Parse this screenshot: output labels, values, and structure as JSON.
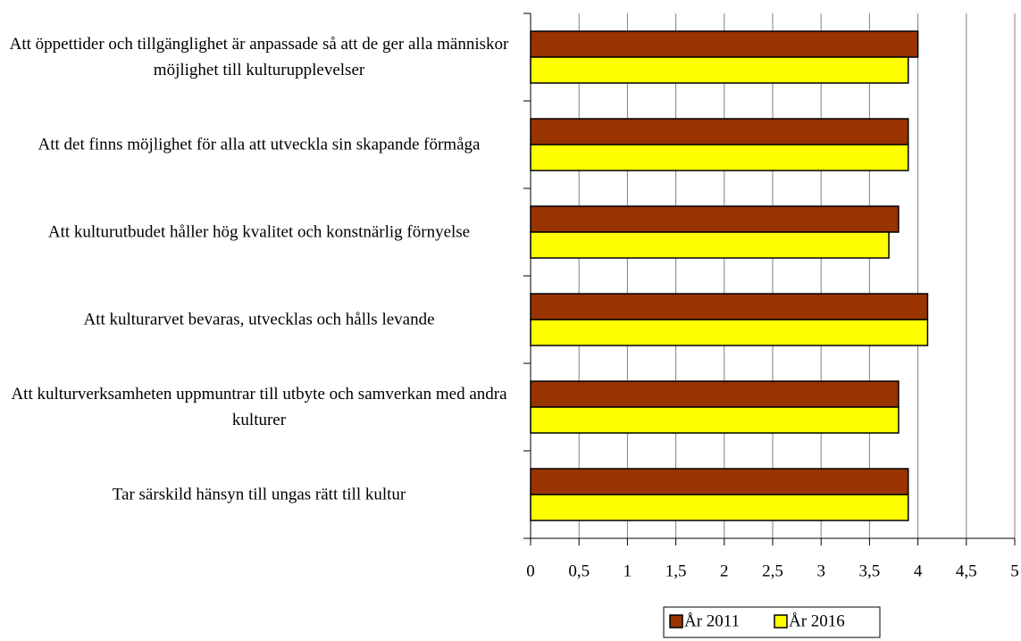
{
  "chart_data": {
    "type": "bar",
    "orientation": "horizontal",
    "categories": [
      "Att öppettider och tillgänglighet är anpassade så att de ger alla människor möjlighet till kulturupplevelser",
      "Att det finns möjlighet för alla att utveckla sin skapande förmåga",
      "Att kulturutbudet håller hög kvalitet och konstnärlig förnyelse",
      "Att kulturarvet bevaras, utvecklas och hålls levande",
      "Att kulturverksamheten uppmuntrar till utbyte och samverkan med andra kulturer",
      "Tar särskild hänsyn till ungas rätt till kultur"
    ],
    "series": [
      {
        "name": "År 2011",
        "color": "#993300",
        "values": [
          4.0,
          3.9,
          3.8,
          4.1,
          3.8,
          3.9
        ]
      },
      {
        "name": "År 2016",
        "color": "#ffff00",
        "values": [
          3.9,
          3.9,
          3.7,
          4.1,
          3.8,
          3.9
        ]
      }
    ],
    "xlim": [
      0,
      5
    ],
    "xticks": [
      0,
      {
        "value": 0.5,
        "label": "0,5"
      },
      1,
      {
        "value": 1.5,
        "label": "1,5"
      },
      2,
      {
        "value": 2.5,
        "label": "2,5"
      },
      3,
      {
        "value": 3.5,
        "label": "3,5"
      },
      4,
      {
        "value": 4.5,
        "label": "4,5"
      },
      5
    ],
    "grid": true,
    "legend": "bottom"
  }
}
